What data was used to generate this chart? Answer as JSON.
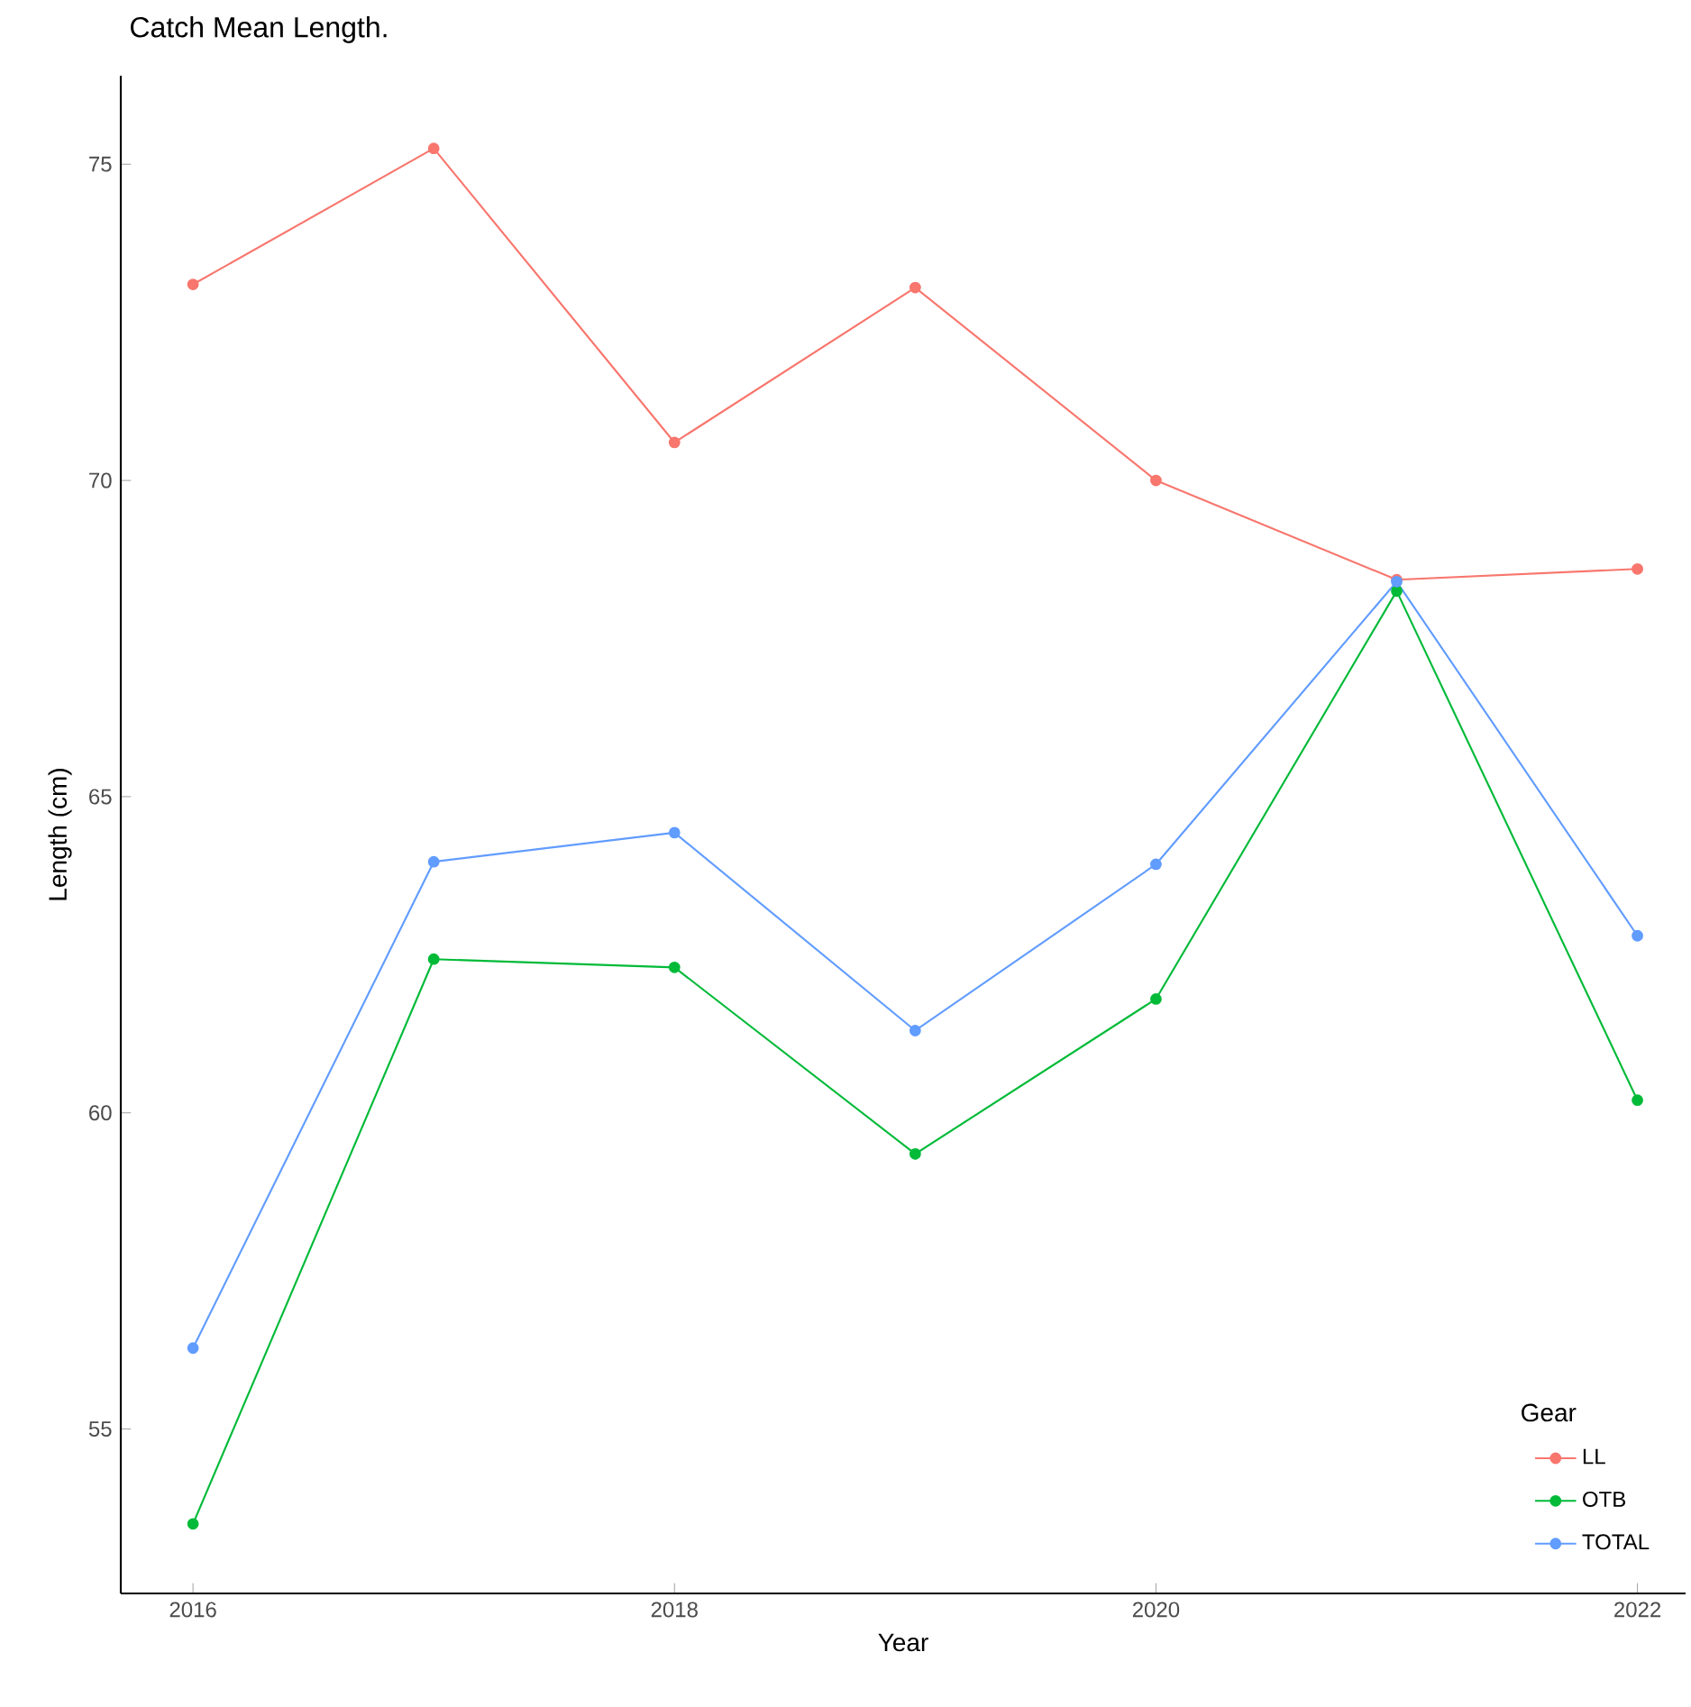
{
  "chart_data": {
    "type": "line",
    "title": "Catch Mean Length.",
    "xlabel": "Year",
    "ylabel": "Length (cm)",
    "legend_title": "Gear",
    "x": [
      2016,
      2017,
      2018,
      2019,
      2020,
      2021,
      2022
    ],
    "series": [
      {
        "name": "LL",
        "color": "#f8766d",
        "values": [
          73.1,
          75.25,
          70.6,
          73.05,
          70.0,
          68.43,
          68.6
        ]
      },
      {
        "name": "OTB",
        "color": "#00ba38",
        "values": [
          53.5,
          62.43,
          62.3,
          59.35,
          61.8,
          68.25,
          60.2
        ]
      },
      {
        "name": "TOTAL",
        "color": "#619cff",
        "values": [
          56.28,
          63.97,
          64.43,
          61.3,
          63.93,
          68.4,
          62.8
        ]
      }
    ],
    "xlim": [
      2015.7,
      2022.2
    ],
    "ylim": [
      52.4,
      76.4
    ],
    "xticks": [
      2016,
      2018,
      2020,
      2022
    ],
    "yticks": [
      55,
      60,
      65,
      70,
      75
    ],
    "grid": false,
    "legend": "bottom right",
    "marker": "circle",
    "line_style": "solid"
  }
}
